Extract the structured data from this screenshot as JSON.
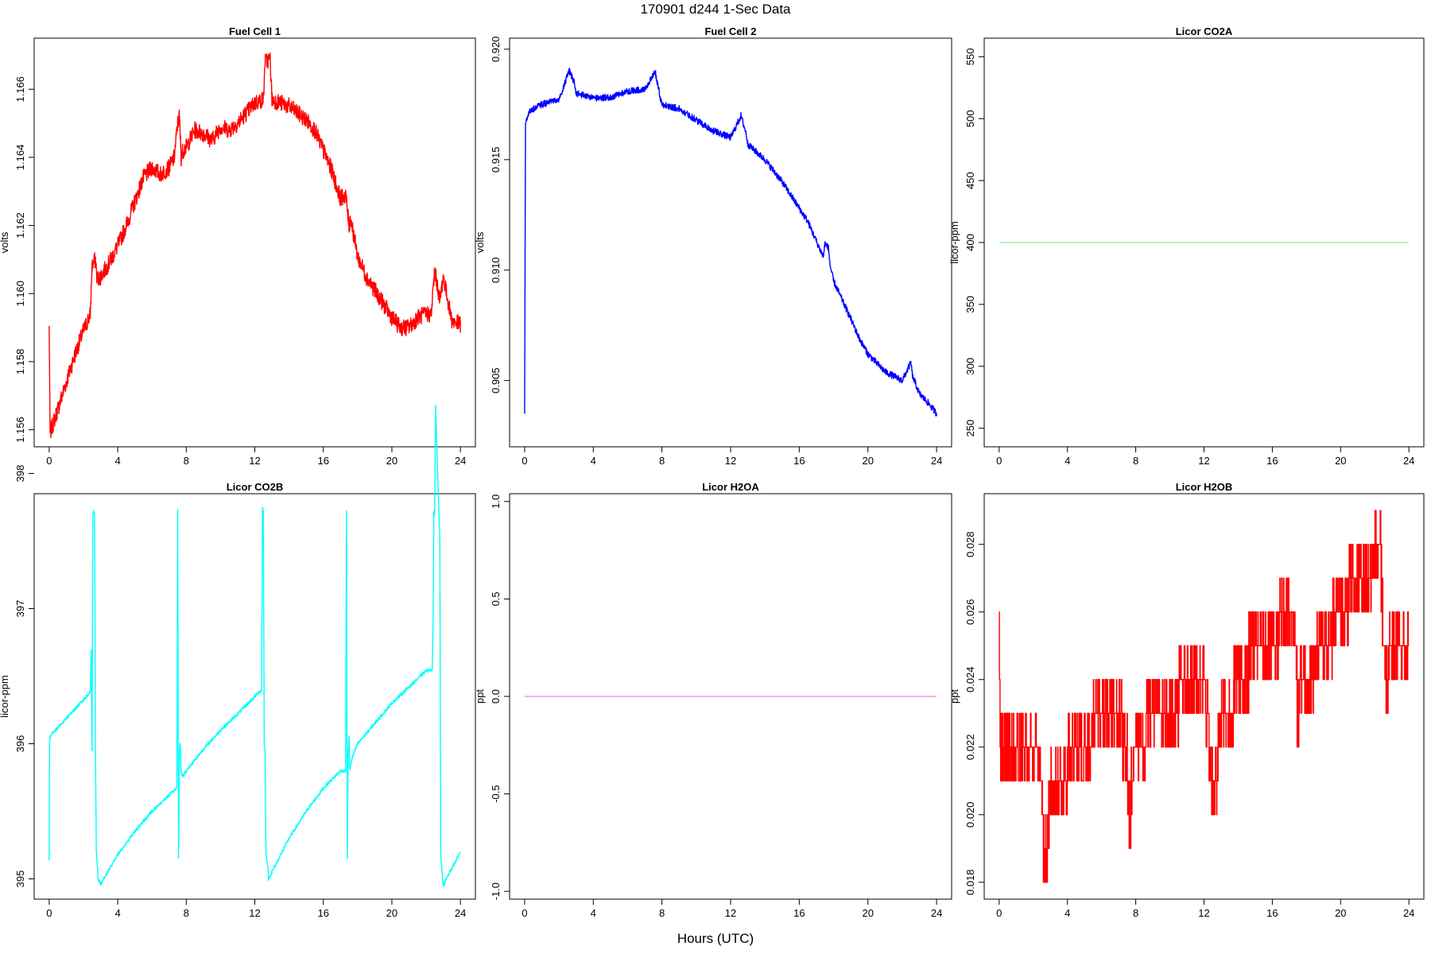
{
  "figure": {
    "title": "170901   d244   1-Sec Data",
    "xlabel": "Hours (UTC)"
  },
  "chart_data": [
    {
      "id": "fc1",
      "type": "line",
      "title": "Fuel Cell 1",
      "ylabel": "volts",
      "color": "#ff0000",
      "xlim": [
        0,
        24
      ],
      "ylim": [
        1.1555,
        1.1675
      ],
      "xticks": [
        0,
        4,
        8,
        12,
        16,
        20,
        24
      ],
      "yticks": [
        1.156,
        1.158,
        1.16,
        1.162,
        1.164,
        1.166
      ],
      "ytick_labels": [
        "1.156",
        "1.158",
        "1.160",
        "1.162",
        "1.164",
        "1.166"
      ],
      "noise": 0.00025,
      "x": [
        0,
        0.05,
        0.5,
        1,
        1.5,
        2,
        2.4,
        2.5,
        2.7,
        2.8,
        3,
        3.5,
        4,
        4.5,
        5,
        5.5,
        6,
        6.5,
        7,
        7.3,
        7.5,
        7.6,
        7.7,
        7.8,
        8,
        8.5,
        9,
        9.5,
        10,
        10.5,
        11,
        11.5,
        12,
        12.5,
        12.6,
        12.9,
        13,
        13.5,
        14,
        14.5,
        15,
        15.5,
        16,
        16.5,
        17,
        17.3,
        17.5,
        17.6,
        18,
        18.5,
        19,
        19.5,
        20,
        20.5,
        21,
        21.5,
        22,
        22.3,
        22.5,
        22.8,
        23,
        23.5,
        24
      ],
      "y": [
        1.159,
        1.1559,
        1.1566,
        1.1574,
        1.1582,
        1.1589,
        1.1594,
        1.1608,
        1.161,
        1.1604,
        1.1605,
        1.1609,
        1.1614,
        1.162,
        1.1627,
        1.1634,
        1.1637,
        1.1635,
        1.1637,
        1.164,
        1.165,
        1.1652,
        1.164,
        1.1642,
        1.1643,
        1.1648,
        1.1647,
        1.1645,
        1.1649,
        1.1648,
        1.165,
        1.1653,
        1.1656,
        1.1657,
        1.1668,
        1.1669,
        1.1657,
        1.1656,
        1.1655,
        1.1653,
        1.1651,
        1.1648,
        1.1642,
        1.1636,
        1.1628,
        1.1629,
        1.162,
        1.1622,
        1.1611,
        1.1605,
        1.1601,
        1.1597,
        1.1593,
        1.159,
        1.159,
        1.1593,
        1.1594,
        1.1594,
        1.1607,
        1.1598,
        1.1605,
        1.1592,
        1.1591
      ]
    },
    {
      "id": "fc2",
      "type": "line",
      "title": "Fuel Cell 2",
      "ylabel": "volts",
      "color": "#0000ff",
      "xlim": [
        0,
        24
      ],
      "ylim": [
        0.902,
        0.9205
      ],
      "xticks": [
        0,
        4,
        8,
        12,
        16,
        20,
        24
      ],
      "yticks": [
        0.905,
        0.91,
        0.915,
        0.92
      ],
      "ytick_labels": [
        "0.905",
        "0.910",
        "0.915",
        "0.920"
      ],
      "noise": 0.00015,
      "x": [
        0,
        0.05,
        0.3,
        1,
        2,
        2.5,
        2.6,
        2.9,
        3,
        4,
        5,
        6,
        7,
        7.5,
        7.6,
        7.9,
        8,
        9,
        10,
        11,
        12,
        12.5,
        12.6,
        12.9,
        13,
        14,
        15,
        16,
        16.5,
        17,
        17.4,
        17.5,
        17.7,
        17.8,
        18,
        19,
        19.5,
        20,
        21,
        22,
        22.5,
        22.6,
        23,
        23.5,
        24
      ],
      "y": [
        0.9035,
        0.9166,
        0.9172,
        0.9175,
        0.9177,
        0.9188,
        0.919,
        0.9185,
        0.918,
        0.9178,
        0.9178,
        0.9181,
        0.9182,
        0.9188,
        0.919,
        0.9178,
        0.9175,
        0.9173,
        0.9168,
        0.9163,
        0.916,
        0.9168,
        0.917,
        0.9162,
        0.9157,
        0.915,
        0.914,
        0.9128,
        0.9122,
        0.9113,
        0.9106,
        0.9112,
        0.911,
        0.9102,
        0.9095,
        0.9078,
        0.9069,
        0.9062,
        0.9054,
        0.905,
        0.9058,
        0.9052,
        0.9044,
        0.904,
        0.9035
      ]
    },
    {
      "id": "co2a",
      "type": "line",
      "title": "Licor CO2A",
      "ylabel": "licor-ppm",
      "color": "#90ee90",
      "xlim": [
        0,
        24
      ],
      "ylim": [
        235,
        565
      ],
      "xticks": [
        0,
        4,
        8,
        12,
        16,
        20,
        24
      ],
      "yticks": [
        250,
        300,
        350,
        400,
        450,
        500,
        550
      ],
      "ytick_labels": [
        "250",
        "300",
        "350",
        "400",
        "450",
        "500",
        "550"
      ],
      "noise": 0,
      "x": [
        0,
        24
      ],
      "y": [
        400,
        400
      ]
    },
    {
      "id": "co2b",
      "type": "line",
      "title": "Licor CO2B",
      "ylabel": "licor-ppm",
      "color": "#00ffff",
      "xlim": [
        0,
        24
      ],
      "ylim": [
        394.85,
        397.85
      ],
      "xticks": [
        0,
        4,
        8,
        12,
        16,
        20,
        24
      ],
      "yticks": [
        395,
        396,
        397,
        398
      ],
      "ytick_labels": [
        "395",
        "396",
        "397",
        "398"
      ],
      "noise": 0.012,
      "x": [
        0,
        0.02,
        0.05,
        0.15,
        2.4,
        2.45,
        2.5,
        2.55,
        2.6,
        2.65,
        2.7,
        2.75,
        2.8,
        2.85,
        3,
        4,
        5,
        6,
        7,
        7.45,
        7.5,
        7.55,
        7.6,
        7.65,
        7.7,
        7.8,
        8,
        9,
        10,
        11,
        12,
        12.4,
        12.45,
        12.5,
        12.55,
        12.6,
        12.65,
        12.7,
        12.75,
        12.8,
        13,
        14,
        15,
        16,
        17,
        17.3,
        17.35,
        17.4,
        17.45,
        17.5,
        17.55,
        17.6,
        17.7,
        18,
        19,
        20,
        21,
        22,
        22.35,
        22.4,
        22.45,
        22.5,
        22.55,
        22.8,
        22.85,
        22.9,
        23,
        23.3,
        23.6,
        24
      ],
      "y": [
        395.15,
        396.0,
        396.05,
        396.07,
        396.38,
        396.7,
        395.95,
        397.7,
        397.72,
        397.7,
        395.95,
        395.2,
        395.12,
        395.0,
        394.96,
        395.18,
        395.35,
        395.5,
        395.62,
        395.67,
        397.73,
        395.15,
        395.95,
        396.0,
        395.78,
        395.76,
        395.8,
        395.96,
        396.1,
        396.22,
        396.35,
        396.4,
        397.75,
        397.72,
        396.0,
        395.95,
        395.2,
        395.15,
        395.1,
        395.0,
        395.05,
        395.3,
        395.5,
        395.67,
        395.8,
        395.8,
        397.73,
        395.15,
        395.95,
        396.05,
        395.8,
        395.85,
        395.9,
        396.0,
        396.15,
        396.3,
        396.42,
        396.54,
        396.55,
        396.85,
        397.72,
        397.7,
        398.5,
        397.5,
        395.15,
        395.1,
        394.95,
        395.03,
        395.1,
        395.2
      ]
    },
    {
      "id": "h2oa",
      "type": "line",
      "title": "Licor H2OA",
      "ylabel": "ppt",
      "color": "#ee82ee",
      "xlim": [
        0,
        24
      ],
      "ylim": [
        -1.04,
        1.04
      ],
      "xticks": [
        0,
        4,
        8,
        12,
        16,
        20,
        24
      ],
      "yticks": [
        -1.0,
        -0.5,
        0.0,
        0.5,
        1.0
      ],
      "ytick_labels": [
        "-1.0",
        "-0.5",
        "0.0",
        "0.5",
        "1.0"
      ],
      "noise": 0,
      "x": [
        0,
        24
      ],
      "y": [
        0,
        0
      ]
    },
    {
      "id": "h2ob",
      "type": "step",
      "title": "Licor H2OB",
      "ylabel": "ppt",
      "color": "#ff0000",
      "xlim": [
        0,
        24
      ],
      "ylim": [
        0.0175,
        0.0295
      ],
      "xticks": [
        0,
        4,
        8,
        12,
        16,
        20,
        24
      ],
      "yticks": [
        0.018,
        0.02,
        0.022,
        0.024,
        0.026,
        0.028
      ],
      "ytick_labels": [
        "0.018",
        "0.020",
        "0.022",
        "0.024",
        "0.026",
        "0.028"
      ],
      "step": 0.001,
      "noise_levels": 1,
      "x": [
        0,
        0.05,
        1,
        2,
        2.5,
        2.6,
        2.8,
        3,
        4,
        5,
        6,
        7,
        7.5,
        7.6,
        7.9,
        8,
        9,
        10,
        11,
        12,
        12.5,
        12.6,
        12.9,
        13,
        14,
        15,
        16,
        17,
        17.3,
        17.5,
        17.6,
        18,
        19,
        20,
        21,
        22,
        22.3,
        22.5,
        22.7,
        23,
        24
      ],
      "y": [
        0.027,
        0.022,
        0.022,
        0.022,
        0.021,
        0.019,
        0.0185,
        0.021,
        0.0215,
        0.022,
        0.023,
        0.023,
        0.0215,
        0.0195,
        0.022,
        0.022,
        0.0228,
        0.023,
        0.024,
        0.024,
        0.021,
        0.0205,
        0.0225,
        0.023,
        0.0237,
        0.025,
        0.025,
        0.0262,
        0.0262,
        0.0225,
        0.0235,
        0.024,
        0.025,
        0.026,
        0.027,
        0.0275,
        0.0285,
        0.0255,
        0.024,
        0.025,
        0.025
      ]
    }
  ]
}
